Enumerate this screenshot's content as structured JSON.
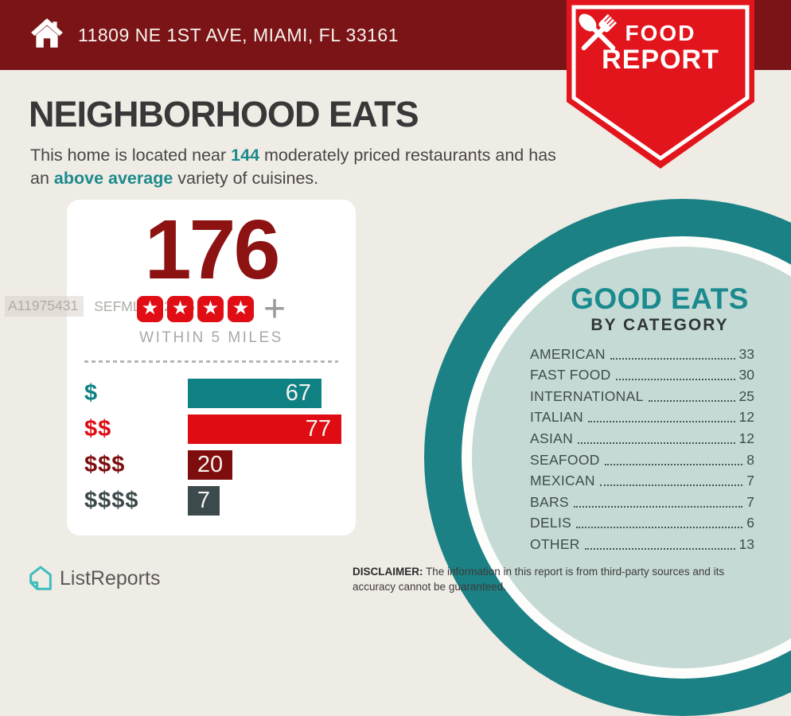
{
  "header": {
    "address": "11809 NE 1ST AVE, MIAMI, FL 33161"
  },
  "badge": {
    "line1": "FOOD",
    "line2": "REPORT"
  },
  "page": {
    "title": "NEIGHBORHOOD EATS",
    "subtitle": {
      "part1": "This home is located near ",
      "count": "144",
      "part2": " moderately priced restaurants and has an ",
      "highlight": "above average",
      "part3": " variety of cuisines."
    }
  },
  "summary_card": {
    "total": "176",
    "stars": 4,
    "plus": "+",
    "caption": "WITHIN 5 MILES"
  },
  "good_eats": {
    "title": "GOOD EATS",
    "subtitle": "BY CATEGORY"
  },
  "watermark": {
    "id": "A11975431",
    "mls": "SEFMLS© 2026"
  },
  "footer": {
    "brand": "ListReports",
    "disclaimer_label": "DISCLAIMER:",
    "disclaimer_text": " The information in this report is from third-party sources and its accuracy cannot be guaranteed."
  },
  "colors": {
    "background": "#EFEBE5",
    "header_maroon": "#7B1416",
    "badge_red": "#E2151C",
    "accent_teal": "#1D8A8C",
    "big_number_red": "#8D1212",
    "star_red": "#E00E14",
    "circle_teal": "#1B8184",
    "circle_light": "#C5DAD5"
  },
  "chart_data": [
    {
      "type": "bar",
      "orientation": "horizontal",
      "title": "",
      "categories": [
        "$",
        "$$",
        "$$$",
        "$$$$"
      ],
      "values": [
        67,
        77,
        20,
        7
      ],
      "colors": [
        "#0F8183",
        "#DF0D13",
        "#7E0D0E",
        "#3C4A4B"
      ],
      "value_labels": "inside bars",
      "xlim": [
        0,
        80
      ],
      "grid": false
    },
    {
      "type": "table",
      "title": "GOOD EATS BY CATEGORY",
      "categories": [
        "AMERICAN",
        "FAST FOOD",
        "INTERNATIONAL",
        "ITALIAN",
        "ASIAN",
        "SEAFOOD",
        "MEXICAN",
        "BARS",
        "DELIS",
        "OTHER"
      ],
      "values": [
        33,
        30,
        25,
        12,
        12,
        8,
        7,
        7,
        6,
        13
      ]
    }
  ]
}
